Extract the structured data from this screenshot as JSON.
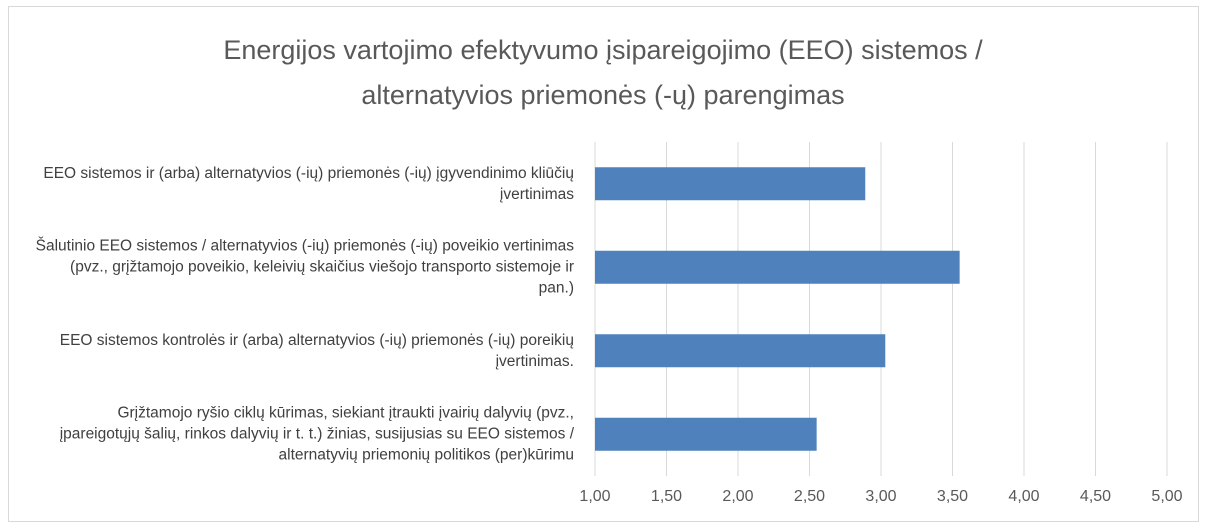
{
  "chart_data": {
    "type": "barh",
    "title": "Energijos vartojimo efektyvumo įsipareigojimo (EEO) sistemos / alternatyvios priemonės (-ų) parengimas",
    "categories": [
      "EEO sistemos ir (arba) alternatyvios (-ių) priemonės (-ių) įgyvendinimo kliūčių įvertinimas",
      "Šalutinio EEO sistemos / alternatyvios (-ių) priemonės (-ių) poveikio vertinimas (pvz., grįžtamojo poveikio, keleivių skaičius viešojo transporto sistemoje ir pan.)",
      "EEO sistemos kontrolės ir (arba) alternatyvios (-ių) priemonės (-ių) poreikių įvertinimas.",
      "Grįžtamojo ryšio ciklų kūrimas, siekiant įtraukti įvairių dalyvių (pvz., įpareigotųjų šalių, rinkos dalyvių ir t. t.) žinias, susijusias su EEO sistemos / alternatyvių priemonių politikos (per)kūrimu"
    ],
    "values": [
      2.89,
      3.55,
      3.03,
      2.55
    ],
    "color": "#4f81bd",
    "xlim": [
      1,
      5
    ],
    "xticks": [
      {
        "value": 1,
        "label": "1,00"
      },
      {
        "value": 1.5,
        "label": "1,50"
      },
      {
        "value": 2,
        "label": "2,00"
      },
      {
        "value": 2.5,
        "label": "2,50"
      },
      {
        "value": 3,
        "label": "3,00"
      },
      {
        "value": 3.5,
        "label": "3,50"
      },
      {
        "value": 4,
        "label": "4,00"
      },
      {
        "value": 4.5,
        "label": "4,50"
      },
      {
        "value": 5,
        "label": "5,00"
      }
    ],
    "grid": true
  }
}
